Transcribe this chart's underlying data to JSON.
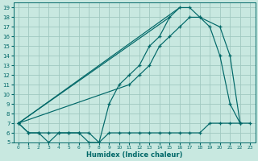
{
  "xlabel": "Humidex (Indice chaleur)",
  "background_color": "#c8e8e0",
  "grid_color": "#a0c8c0",
  "line_color": "#006868",
  "xlim": [
    -0.5,
    23.5
  ],
  "ylim": [
    5,
    19.5
  ],
  "xticks": [
    0,
    1,
    2,
    3,
    4,
    5,
    6,
    7,
    8,
    9,
    10,
    11,
    12,
    13,
    14,
    15,
    16,
    17,
    18,
    19,
    20,
    21,
    22,
    23
  ],
  "yticks": [
    5,
    6,
    7,
    8,
    9,
    10,
    11,
    12,
    13,
    14,
    15,
    16,
    17,
    18,
    19
  ],
  "curve1_x": [
    0,
    1,
    2,
    3,
    4,
    5,
    6,
    7,
    8,
    9,
    10,
    11,
    12,
    13,
    14,
    15,
    16,
    17,
    18,
    19,
    20,
    21,
    22
  ],
  "curve1_y": [
    7,
    6,
    6,
    5,
    6,
    6,
    6,
    5,
    5,
    9,
    11,
    12,
    13,
    15,
    16,
    18,
    19,
    19,
    18,
    17,
    14,
    9,
    7
  ],
  "curve2_x": [
    0,
    11,
    12,
    13,
    14,
    15,
    16,
    17,
    18,
    20,
    21,
    22
  ],
  "curve2_y": [
    7,
    11,
    12,
    13,
    15,
    16,
    17,
    18,
    18,
    17,
    14,
    7
  ],
  "curve3_x": [
    0,
    1,
    2,
    3,
    4,
    5,
    6,
    7,
    8,
    9,
    10,
    11,
    12,
    13,
    14,
    15,
    16,
    17,
    18,
    19,
    20,
    21,
    22,
    23
  ],
  "curve3_y": [
    7,
    6,
    6,
    6,
    6,
    6,
    6,
    6,
    5,
    6,
    6,
    6,
    6,
    6,
    6,
    6,
    6,
    6,
    6,
    7,
    7,
    7,
    7,
    7
  ]
}
